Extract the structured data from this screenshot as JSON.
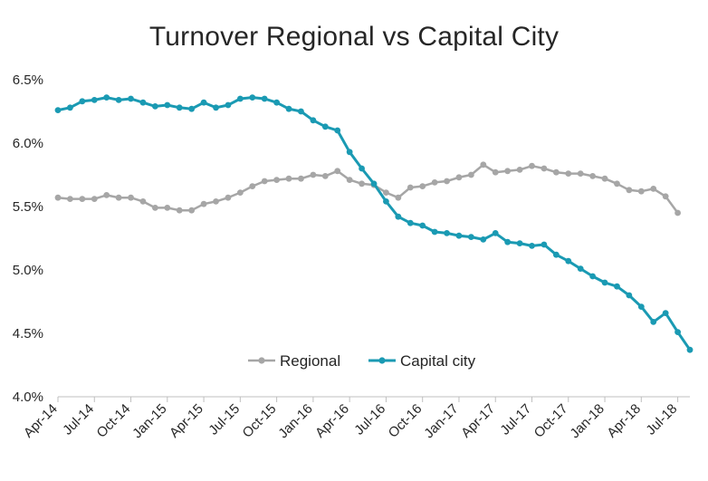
{
  "chart_data": {
    "type": "line",
    "title": "Turnover Regional vs Capital City",
    "xlabel": "",
    "ylabel": "",
    "ylim": [
      4.0,
      6.5
    ],
    "y_ticks": [
      "4.0%",
      "4.5%",
      "5.0%",
      "5.5%",
      "6.0%",
      "6.5%"
    ],
    "y_tick_values": [
      4.0,
      4.5,
      5.0,
      5.5,
      6.0,
      6.5
    ],
    "x_ticks": [
      "Apr-14",
      "Jul-14",
      "Oct-14",
      "Jan-15",
      "Apr-15",
      "Jul-15",
      "Oct-15",
      "Jan-16",
      "Apr-16",
      "Jul-16",
      "Oct-16",
      "Jan-17",
      "Apr-17",
      "Jul-17",
      "Oct-17",
      "Jan-18",
      "Apr-18",
      "Jul-18"
    ],
    "x_tick_index": [
      0,
      3,
      6,
      9,
      12,
      15,
      18,
      21,
      24,
      27,
      30,
      33,
      36,
      39,
      42,
      45,
      48,
      51
    ],
    "legend_position": "bottom-center",
    "grid": false,
    "series": [
      {
        "name": "Regional",
        "color": "#a6a6a6",
        "values": [
          5.57,
          5.56,
          5.56,
          5.56,
          5.59,
          5.57,
          5.57,
          5.54,
          5.49,
          5.49,
          5.47,
          5.47,
          5.52,
          5.54,
          5.57,
          5.61,
          5.66,
          5.7,
          5.71,
          5.72,
          5.72,
          5.75,
          5.74,
          5.78,
          5.71,
          5.68,
          5.67,
          5.61,
          5.57,
          5.65,
          5.66,
          5.69,
          5.7,
          5.73,
          5.75,
          5.83,
          5.77,
          5.78,
          5.79,
          5.82,
          5.8,
          5.77,
          5.76,
          5.76,
          5.74,
          5.72,
          5.68,
          5.63,
          5.62,
          5.64,
          5.58,
          5.45
        ]
      },
      {
        "name": "Capital city",
        "color": "#1a9ab3",
        "values": [
          6.26,
          6.28,
          6.33,
          6.34,
          6.36,
          6.34,
          6.35,
          6.32,
          6.29,
          6.3,
          6.28,
          6.27,
          6.32,
          6.28,
          6.3,
          6.35,
          6.36,
          6.35,
          6.32,
          6.27,
          6.25,
          6.18,
          6.13,
          6.1,
          5.93,
          5.8,
          5.68,
          5.54,
          5.42,
          5.37,
          5.35,
          5.3,
          5.29,
          5.27,
          5.26,
          5.24,
          5.29,
          5.22,
          5.21,
          5.19,
          5.2,
          5.12,
          5.07,
          5.01,
          4.95,
          4.9,
          4.87,
          4.8,
          4.71,
          4.59,
          4.66,
          4.51,
          4.37
        ]
      }
    ]
  }
}
